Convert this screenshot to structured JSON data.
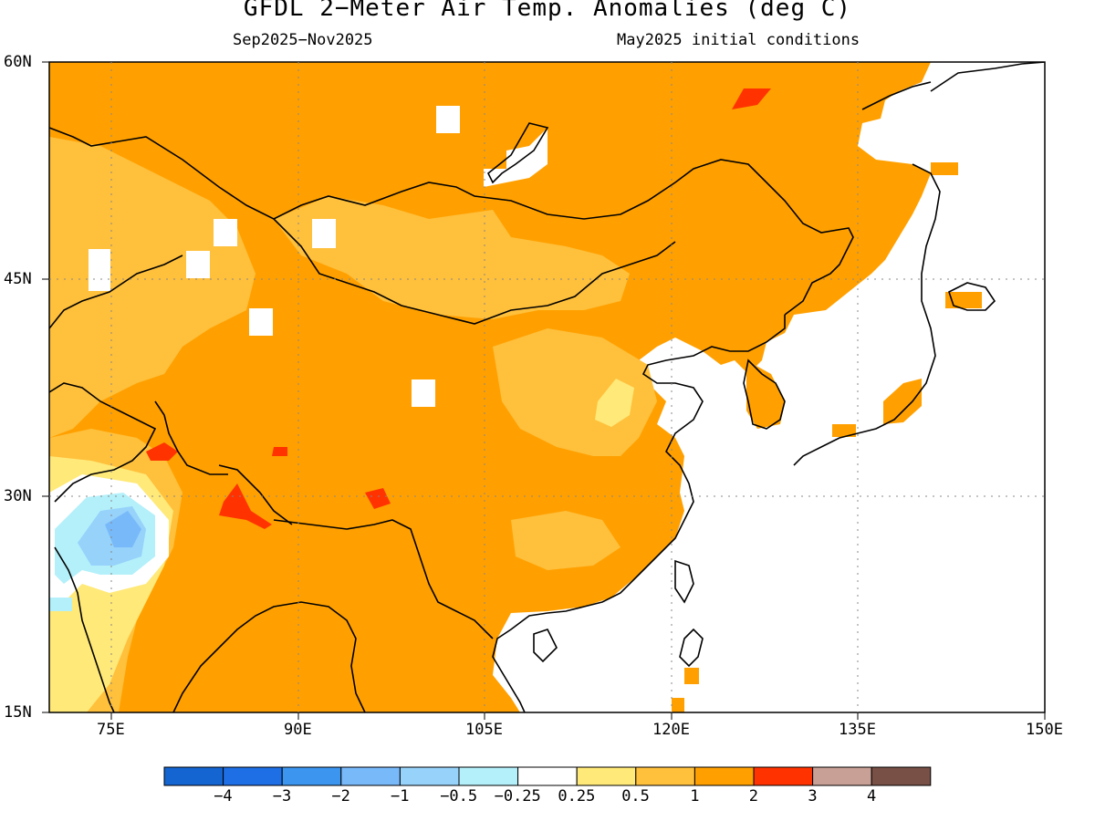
{
  "title": "GFDL 2−Meter Air Temp. Anomalies (deg C)",
  "subtitle_left": "Sep2025−Nov2025",
  "subtitle_right": "May2025 initial conditions",
  "lat_labels": [
    "60N",
    "45N",
    "30N",
    "15N"
  ],
  "lon_labels": [
    "75E",
    "90E",
    "105E",
    "120E",
    "135E",
    "150E"
  ],
  "colorbar": {
    "labels": [
      "−4",
      "−3",
      "−2",
      "−1",
      "−0.5",
      "−0.25",
      "0.25",
      "0.5",
      "1",
      "2",
      "3",
      "4"
    ],
    "colors": [
      "#1464d2",
      "#1e6ee6",
      "#3c96f0",
      "#78b9fa",
      "#96d2fa",
      "#b4f0fa",
      "#ffffff",
      "#ffe978",
      "#ffc03c",
      "#ffa000",
      "#ff3200",
      "#c8a096",
      "#785046"
    ]
  },
  "map": {
    "lon_range": [
      70,
      150
    ],
    "lat_range": [
      15,
      60
    ],
    "colors": {
      "base": "#ffa000",
      "light": "#ffc03c",
      "pale": "#ffe978",
      "warm": "#ff3200",
      "cool1": "#b4f0fa",
      "cool2": "#96d2fa",
      "cool3": "#78b9fa",
      "ocean": "#ffffff"
    }
  }
}
